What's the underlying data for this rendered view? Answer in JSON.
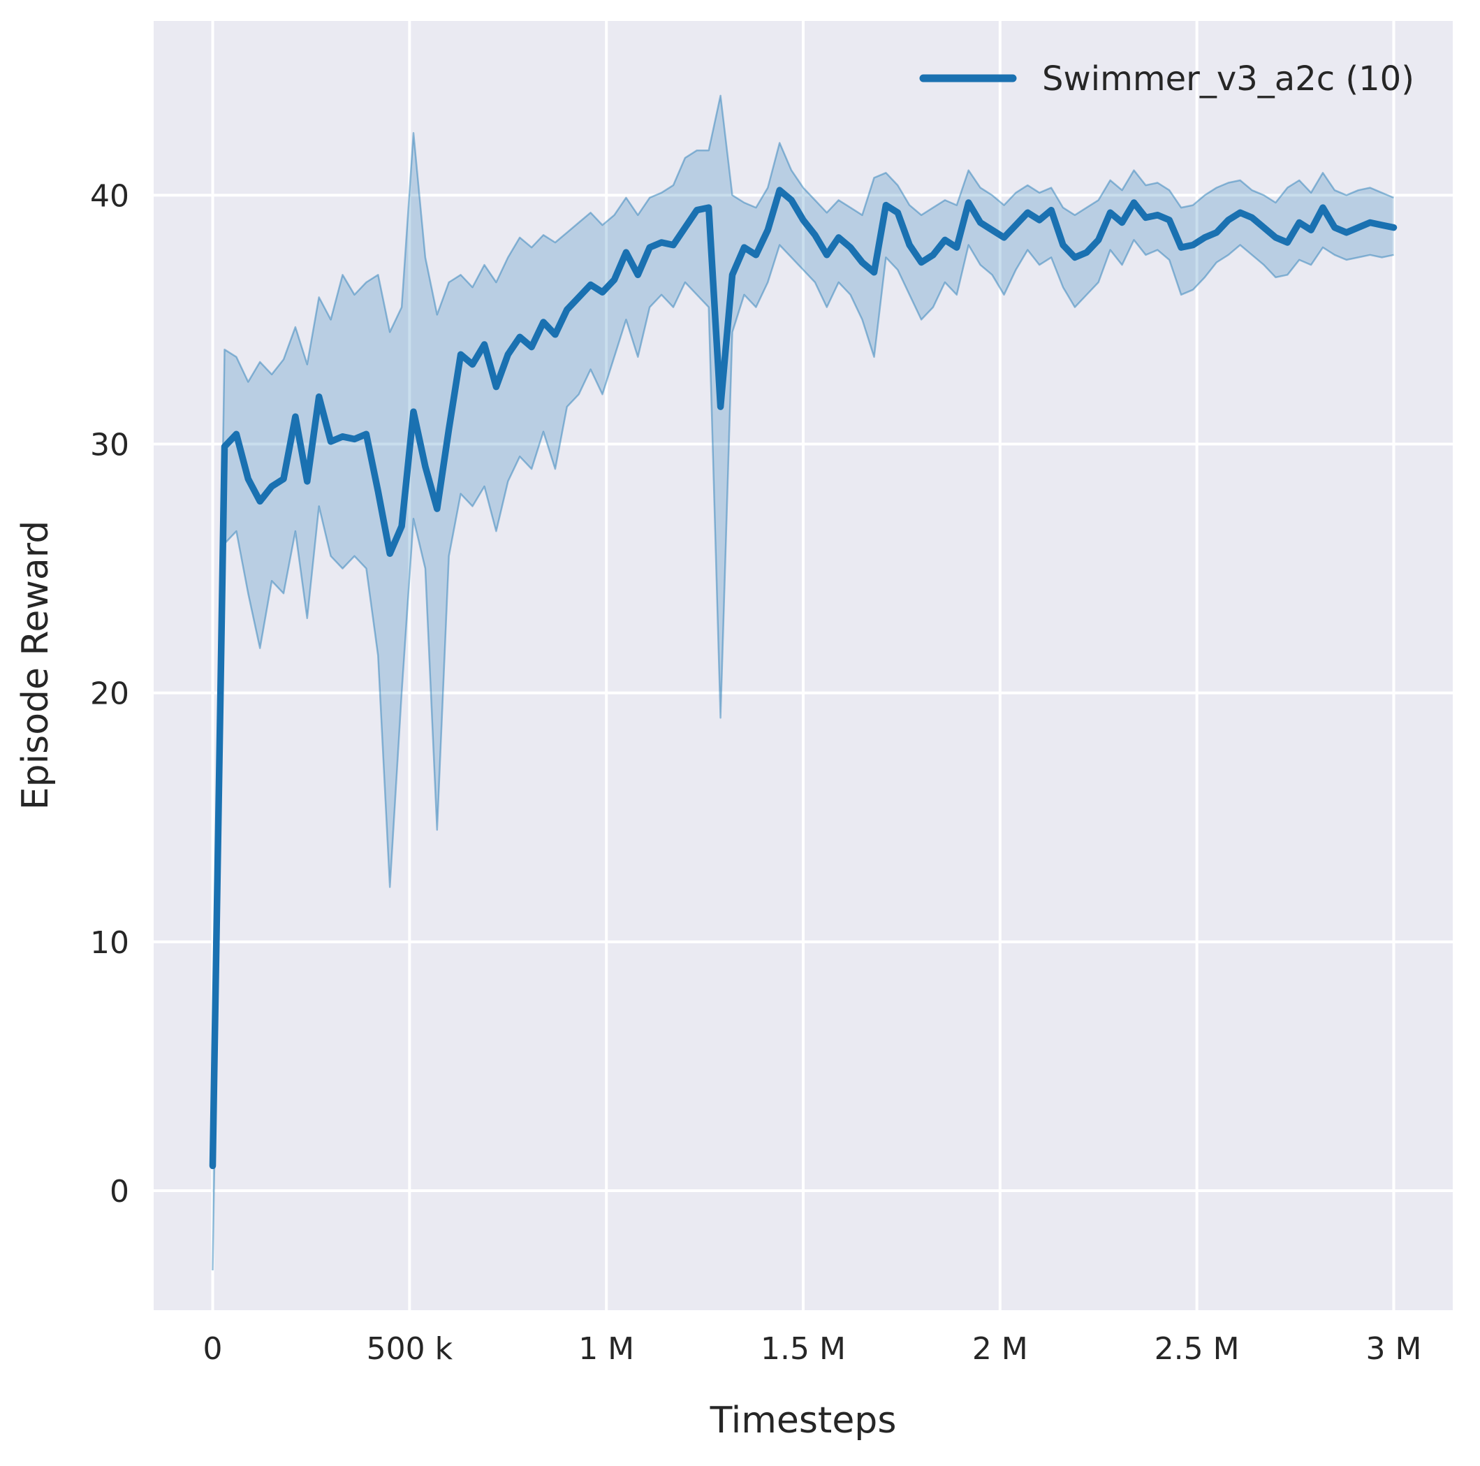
{
  "figure": {
    "background": "#ffffff",
    "plot_background": "#eaeaf2",
    "grid_color": "#ffffff",
    "text_color": "#262626"
  },
  "chart_data": {
    "type": "line",
    "title": "",
    "xlabel": "Timesteps",
    "ylabel": "Episode Reward",
    "grid": true,
    "legend": {
      "position": "upper right",
      "entries": [
        {
          "label": "Swimmer_v3_a2c (10)",
          "color": "#1a71b1"
        }
      ]
    },
    "xlim": [
      -150000,
      3150000
    ],
    "ylim": [
      -4.8,
      47.0
    ],
    "x_ticks": [
      {
        "value": 0,
        "label": "0"
      },
      {
        "value": 500000,
        "label": "500 k"
      },
      {
        "value": 1000000,
        "label": "1 M"
      },
      {
        "value": 1500000,
        "label": "1.5 M"
      },
      {
        "value": 2000000,
        "label": "2 M"
      },
      {
        "value": 2500000,
        "label": "2.5 M"
      },
      {
        "value": 3000000,
        "label": "3 M"
      }
    ],
    "y_ticks": [
      {
        "value": 0,
        "label": "0"
      },
      {
        "value": 10,
        "label": "10"
      },
      {
        "value": 20,
        "label": "20"
      },
      {
        "value": 30,
        "label": "30"
      },
      {
        "value": 40,
        "label": "40"
      }
    ],
    "series": [
      {
        "name": "Swimmer_v3_a2c (10)",
        "color": "#1a71b1",
        "band_fill": "rgba(31,119,180,0.24)",
        "band_edge": "rgba(31,119,180,0.45)",
        "x": [
          0,
          30000,
          60000,
          90000,
          120000,
          150000,
          180000,
          210000,
          240000,
          270000,
          300000,
          330000,
          360000,
          390000,
          420000,
          450000,
          480000,
          510000,
          540000,
          570000,
          600000,
          630000,
          660000,
          690000,
          720000,
          750000,
          780000,
          810000,
          840000,
          870000,
          900000,
          930000,
          960000,
          990000,
          1020000,
          1050000,
          1080000,
          1110000,
          1140000,
          1170000,
          1200000,
          1230000,
          1260000,
          1290000,
          1320000,
          1350000,
          1380000,
          1410000,
          1440000,
          1470000,
          1500000,
          1530000,
          1560000,
          1590000,
          1620000,
          1650000,
          1680000,
          1710000,
          1740000,
          1770000,
          1800000,
          1830000,
          1860000,
          1890000,
          1920000,
          1950000,
          1980000,
          2010000,
          2040000,
          2070000,
          2100000,
          2130000,
          2160000,
          2190000,
          2220000,
          2250000,
          2280000,
          2310000,
          2340000,
          2370000,
          2400000,
          2430000,
          2460000,
          2490000,
          2520000,
          2550000,
          2580000,
          2610000,
          2640000,
          2670000,
          2700000,
          2730000,
          2760000,
          2790000,
          2820000,
          2850000,
          2880000,
          2910000,
          2940000,
          2970000,
          3000000
        ],
        "mean": [
          1.0,
          29.9,
          30.4,
          28.6,
          27.7,
          28.3,
          28.6,
          31.1,
          28.5,
          31.9,
          30.1,
          30.3,
          30.2,
          30.4,
          28.1,
          25.6,
          26.7,
          31.3,
          29.1,
          27.4,
          30.6,
          33.6,
          33.2,
          34.0,
          32.3,
          33.6,
          34.3,
          33.9,
          34.9,
          34.4,
          35.4,
          35.9,
          36.4,
          36.1,
          36.6,
          37.7,
          36.8,
          37.9,
          38.1,
          38.0,
          38.7,
          39.4,
          39.5,
          31.5,
          36.8,
          37.9,
          37.6,
          38.6,
          40.2,
          39.8,
          39.0,
          38.4,
          37.6,
          38.3,
          37.9,
          37.3,
          36.9,
          39.6,
          39.3,
          38.0,
          37.3,
          37.6,
          38.2,
          37.9,
          39.7,
          38.9,
          38.6,
          38.3,
          38.8,
          39.3,
          39.0,
          39.4,
          38.0,
          37.5,
          37.7,
          38.2,
          39.3,
          38.9,
          39.7,
          39.1,
          39.2,
          39.0,
          37.9,
          38.0,
          38.3,
          38.5,
          39.0,
          39.3,
          39.1,
          38.7,
          38.3,
          38.1,
          38.9,
          38.6,
          39.5,
          38.7,
          38.5,
          38.7,
          38.9,
          38.8,
          38.7
        ],
        "band_upper": [
          4.0,
          33.8,
          33.5,
          32.5,
          33.3,
          32.8,
          33.4,
          34.7,
          33.2,
          35.9,
          35.0,
          36.8,
          36.0,
          36.5,
          36.8,
          34.5,
          35.5,
          42.5,
          37.5,
          35.2,
          36.5,
          36.8,
          36.3,
          37.2,
          36.5,
          37.5,
          38.3,
          37.9,
          38.4,
          38.1,
          38.5,
          38.9,
          39.3,
          38.8,
          39.2,
          39.9,
          39.2,
          39.9,
          40.1,
          40.4,
          41.5,
          41.8,
          41.8,
          44.0,
          40.0,
          39.7,
          39.5,
          40.3,
          42.1,
          41.0,
          40.3,
          39.8,
          39.3,
          39.8,
          39.5,
          39.2,
          40.7,
          40.9,
          40.4,
          39.6,
          39.2,
          39.5,
          39.8,
          39.6,
          41.0,
          40.3,
          40.0,
          39.6,
          40.1,
          40.4,
          40.1,
          40.3,
          39.5,
          39.2,
          39.5,
          39.8,
          40.6,
          40.2,
          41.0,
          40.4,
          40.5,
          40.2,
          39.5,
          39.6,
          40.0,
          40.3,
          40.5,
          40.6,
          40.2,
          40.0,
          39.7,
          40.3,
          40.6,
          40.1,
          40.9,
          40.2,
          40.0,
          40.2,
          40.3,
          40.1,
          39.9
        ],
        "band_lower": [
          -3.2,
          26.0,
          26.5,
          24.0,
          21.8,
          24.5,
          24.0,
          26.5,
          23.0,
          27.5,
          25.5,
          25.0,
          25.5,
          25.0,
          21.5,
          12.2,
          20.0,
          27.0,
          25.0,
          14.5,
          25.5,
          28.0,
          27.5,
          28.3,
          26.5,
          28.5,
          29.5,
          29.0,
          30.5,
          29.0,
          31.5,
          32.0,
          33.0,
          32.0,
          33.5,
          35.0,
          33.5,
          35.5,
          36.0,
          35.5,
          36.5,
          36.0,
          35.5,
          19.0,
          34.5,
          36.0,
          35.5,
          36.5,
          38.0,
          37.5,
          37.0,
          36.5,
          35.5,
          36.5,
          36.0,
          35.0,
          33.5,
          37.5,
          37.0,
          36.0,
          35.0,
          35.5,
          36.5,
          36.0,
          38.0,
          37.2,
          36.8,
          36.0,
          37.0,
          37.8,
          37.2,
          37.5,
          36.3,
          35.5,
          36.0,
          36.5,
          37.8,
          37.2,
          38.2,
          37.6,
          37.8,
          37.4,
          36.0,
          36.2,
          36.7,
          37.3,
          37.6,
          38.0,
          37.6,
          37.2,
          36.7,
          36.8,
          37.4,
          37.2,
          37.9,
          37.6,
          37.4,
          37.5,
          37.6,
          37.5,
          37.6
        ]
      }
    ]
  }
}
